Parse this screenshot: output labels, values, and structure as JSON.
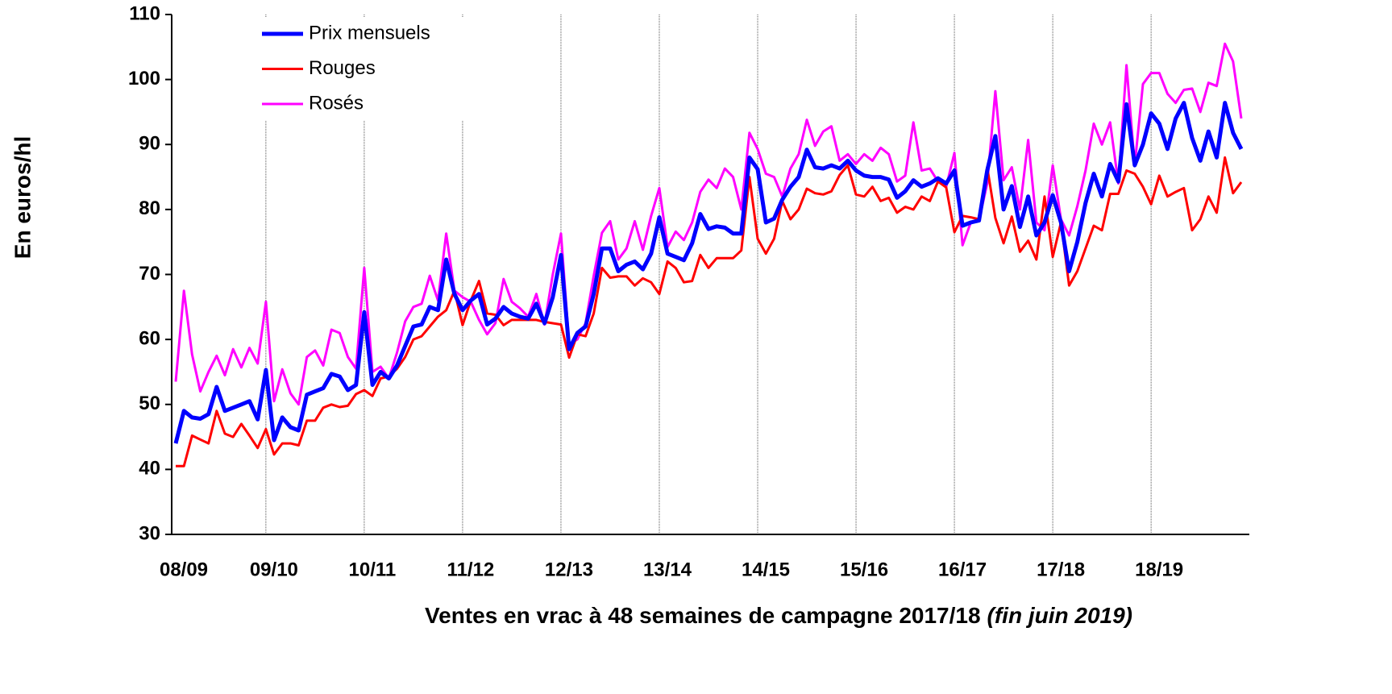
{
  "chart_data": {
    "type": "line",
    "ylabel": "En euros/hl",
    "xlabel": "Ventes en vrac à 48 semaines de campagne 2017/18",
    "xlabel_note": "(fin juin 2019)",
    "categories": [
      "08/09",
      null,
      null,
      null,
      null,
      null,
      null,
      null,
      null,
      null,
      null,
      "09/10",
      null,
      null,
      null,
      null,
      null,
      null,
      null,
      null,
      null,
      null,
      null,
      "10/11",
      null,
      null,
      null,
      null,
      null,
      null,
      null,
      null,
      null,
      null,
      null,
      "11/12",
      null,
      null,
      null,
      null,
      null,
      null,
      null,
      null,
      null,
      null,
      null,
      "12/13",
      null,
      null,
      null,
      null,
      null,
      null,
      null,
      null,
      null,
      null,
      null,
      "13/14",
      null,
      null,
      null,
      null,
      null,
      null,
      null,
      null,
      null,
      null,
      null,
      "14/15",
      null,
      null,
      null,
      null,
      null,
      null,
      null,
      null,
      null,
      null,
      null,
      "15/16",
      null,
      null,
      null,
      null,
      null,
      null,
      null,
      null,
      null,
      null,
      null,
      "16/17",
      null,
      null,
      null,
      null,
      null,
      null,
      null,
      null,
      null,
      null,
      null,
      "17/18",
      null,
      null,
      null,
      null,
      null,
      null,
      null,
      null,
      null,
      null,
      null,
      "18/19",
      null,
      null,
      null,
      null,
      null,
      null,
      null,
      null,
      null,
      null,
      null
    ],
    "series": [
      {
        "name": "Prix mensuels",
        "color": "#0000ff",
        "values": [
          44,
          49,
          48,
          47.8,
          48.5,
          52.7,
          49,
          49.5,
          50,
          50.5,
          47.7,
          55.3,
          44.5,
          48,
          46.5,
          46,
          51.5,
          52,
          52.5,
          54.7,
          54.3,
          52.2,
          53,
          64.2,
          53,
          55,
          54,
          56,
          59,
          62,
          62.3,
          65,
          64.5,
          72.3,
          67,
          64.5,
          66,
          67,
          62.3,
          63.2,
          65,
          64,
          63.5,
          63.2,
          65.5,
          62.5,
          66.5,
          73,
          58.5,
          61,
          62,
          67,
          74,
          74,
          70.5,
          71.5,
          72,
          70.8,
          73.2,
          78.8,
          73.2,
          72.7,
          72.2,
          74.8,
          79.3,
          77,
          77.4,
          77.2,
          76.3,
          76.3,
          88,
          86.2,
          78,
          78.6,
          81.5,
          83.5,
          85,
          89.2,
          86.5,
          86.3,
          86.8,
          86.3,
          87.5,
          86,
          85.2,
          85,
          85,
          84.6,
          81.8,
          82.8,
          84.5,
          83.5,
          84,
          84.8,
          84,
          86,
          77.5,
          78,
          78.3,
          86,
          91.3,
          80,
          83.6,
          77.3,
          82,
          76,
          78,
          82.2,
          78,
          70.5,
          75,
          81,
          85.5,
          82,
          87,
          84.3,
          96.2,
          86.8,
          90,
          94.8,
          93.2,
          89.3,
          94,
          96.4,
          91,
          87.5,
          92,
          88,
          96.4,
          91.8,
          89.3
        ]
      },
      {
        "name": "Rouges",
        "color": "#ff0000",
        "values": [
          40.5,
          40.5,
          45.2,
          44.6,
          44,
          49,
          45.5,
          45,
          47,
          45.2,
          43.3,
          46.2,
          42.3,
          44,
          44,
          43.7,
          47.5,
          47.5,
          49.5,
          50,
          49.6,
          49.8,
          51.6,
          52.2,
          51.3,
          54,
          54.3,
          55.5,
          57.3,
          60,
          60.5,
          62,
          63.5,
          64.5,
          67.5,
          62.2,
          66,
          69,
          64,
          63.8,
          62.2,
          63,
          63,
          63,
          63,
          62.7,
          62.5,
          62.3,
          57.2,
          60.8,
          60.5,
          64,
          71,
          69.5,
          69.7,
          69.7,
          68.3,
          69.4,
          68.8,
          67,
          72,
          71,
          68.8,
          69,
          73,
          71,
          72.5,
          72.5,
          72.5,
          73.7,
          85,
          75.5,
          73.2,
          75.5,
          81.3,
          78.5,
          80,
          83.2,
          82.5,
          82.3,
          82.8,
          85.3,
          86.8,
          82.3,
          82,
          83.5,
          81.3,
          81.8,
          79.5,
          80.4,
          80,
          82,
          81.3,
          84.3,
          83.4,
          76.5,
          79,
          78.8,
          78.5,
          86.5,
          78.7,
          74.8,
          78.9,
          73.5,
          75.2,
          72.3,
          82,
          72.7,
          78,
          68.3,
          70.5,
          74,
          77.5,
          76.8,
          82.4,
          82.4,
          86,
          85.5,
          83.5,
          80.8,
          85.2,
          82,
          82.7,
          83.3,
          76.8,
          78.5,
          82,
          79.5,
          88,
          82.5,
          84.2
        ]
      },
      {
        "name": "Rosés",
        "color": "#ff00ff",
        "values": [
          53.5,
          67.5,
          57.7,
          52,
          55,
          57.5,
          54.5,
          58.5,
          55.7,
          58.7,
          56.3,
          65.8,
          50.5,
          55.4,
          51.7,
          50,
          57.3,
          58.3,
          56,
          61.5,
          61,
          57.3,
          55.5,
          71,
          55,
          55.8,
          54,
          58,
          62.8,
          65,
          65.5,
          69.8,
          66,
          76.3,
          67.5,
          66.5,
          65.8,
          63,
          60.8,
          62.5,
          69.3,
          65.8,
          64.8,
          63.5,
          67,
          62.3,
          70,
          76.3,
          59.3,
          60,
          62.5,
          69.8,
          76.4,
          78.2,
          72.3,
          74,
          78.2,
          73.8,
          79,
          83.3,
          74.2,
          76.6,
          75.3,
          78,
          82.7,
          84.6,
          83.3,
          86.3,
          85,
          80,
          91.8,
          89.3,
          85.5,
          85,
          82,
          86.3,
          88.5,
          93.8,
          89.8,
          92,
          92.8,
          87.5,
          88.5,
          87,
          88.5,
          87.5,
          89.5,
          88.5,
          84.3,
          85.2,
          93.4,
          86,
          86.3,
          84.3,
          83.5,
          88.7,
          74.5,
          78,
          78.3,
          84,
          98.2,
          84.5,
          86.5,
          80,
          90.7,
          78,
          76.8,
          86.8,
          78.5,
          76,
          80.5,
          86,
          93.2,
          90,
          93.4,
          84,
          102.2,
          86.8,
          99.3,
          101,
          101,
          97.8,
          96.4,
          98.4,
          98.6,
          95,
          99.5,
          99,
          105.5,
          102.8,
          94
        ]
      }
    ],
    "ylim": [
      30,
      110
    ],
    "yticks": [
      30,
      40,
      50,
      60,
      70,
      80,
      90,
      100,
      110
    ]
  }
}
